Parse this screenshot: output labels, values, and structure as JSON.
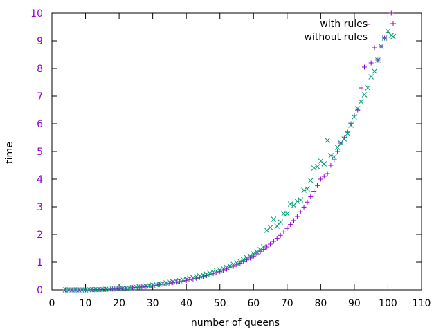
{
  "chart_data": {
    "type": "scatter",
    "title": "",
    "xlabel": "number of queens",
    "ylabel": "time",
    "xlim": [
      0,
      110
    ],
    "ylim": [
      0,
      10
    ],
    "xticks": [
      0,
      10,
      20,
      30,
      40,
      50,
      60,
      70,
      80,
      90,
      100,
      110
    ],
    "yticks": [
      0,
      1,
      2,
      3,
      4,
      5,
      6,
      7,
      8,
      9,
      10
    ],
    "ytick_color": "#9400d3",
    "grid": false,
    "legend_position": "top-right",
    "series": [
      {
        "name": "with rules",
        "marker": "plus",
        "color": "#9400d3",
        "x": [
          4,
          5,
          6,
          7,
          8,
          9,
          10,
          11,
          12,
          13,
          14,
          15,
          16,
          17,
          18,
          19,
          20,
          21,
          22,
          23,
          24,
          25,
          26,
          27,
          28,
          29,
          30,
          31,
          32,
          33,
          34,
          35,
          36,
          37,
          38,
          39,
          40,
          41,
          42,
          43,
          44,
          45,
          46,
          47,
          48,
          49,
          50,
          51,
          52,
          53,
          54,
          55,
          56,
          57,
          58,
          59,
          60,
          61,
          62,
          63,
          64,
          65,
          66,
          67,
          68,
          69,
          70,
          71,
          72,
          73,
          74,
          75,
          76,
          77,
          78,
          79,
          80,
          81,
          82,
          83,
          84,
          85,
          86,
          87,
          88,
          89,
          90,
          91,
          92,
          93,
          94,
          95,
          96,
          97,
          98,
          99,
          100,
          101
        ],
        "y": [
          0.0,
          0.0,
          0.0,
          0.0,
          0.0,
          0.0,
          0.0,
          0.0,
          0.01,
          0.01,
          0.01,
          0.02,
          0.02,
          0.02,
          0.03,
          0.03,
          0.04,
          0.05,
          0.06,
          0.07,
          0.08,
          0.09,
          0.1,
          0.11,
          0.12,
          0.14,
          0.15,
          0.17,
          0.19,
          0.2,
          0.22,
          0.24,
          0.26,
          0.28,
          0.3,
          0.32,
          0.34,
          0.37,
          0.39,
          0.42,
          0.45,
          0.48,
          0.51,
          0.55,
          0.58,
          0.62,
          0.66,
          0.7,
          0.75,
          0.8,
          0.85,
          0.9,
          0.96,
          1.02,
          1.08,
          1.15,
          1.22,
          1.3,
          1.38,
          1.46,
          1.55,
          1.65,
          1.75,
          1.86,
          1.97,
          2.09,
          2.22,
          2.36,
          2.5,
          2.65,
          2.82,
          2.99,
          3.17,
          3.36,
          3.56,
          3.77,
          4.0,
          4.1,
          4.2,
          4.5,
          4.7,
          5.0,
          5.3,
          5.5,
          5.7,
          6.0,
          6.3,
          6.5,
          7.3,
          8.05,
          9.6,
          8.2,
          8.75,
          8.3,
          8.8,
          9.1,
          9.3,
          10.0
        ]
      },
      {
        "name": "without rules",
        "marker": "cross",
        "color": "#009e73",
        "x": [
          4,
          5,
          6,
          7,
          8,
          9,
          10,
          11,
          12,
          13,
          14,
          15,
          16,
          17,
          18,
          19,
          20,
          21,
          22,
          23,
          24,
          25,
          26,
          27,
          28,
          29,
          30,
          31,
          32,
          33,
          34,
          35,
          36,
          37,
          38,
          39,
          40,
          41,
          42,
          43,
          44,
          45,
          46,
          47,
          48,
          49,
          50,
          51,
          52,
          53,
          54,
          55,
          56,
          57,
          58,
          59,
          60,
          61,
          62,
          63,
          64,
          65,
          66,
          67,
          68,
          69,
          70,
          71,
          72,
          73,
          74,
          75,
          76,
          77,
          78,
          79,
          80,
          81,
          82,
          83,
          84,
          85,
          86,
          87,
          88,
          89,
          90,
          91,
          92,
          93,
          94,
          95,
          96,
          97,
          98,
          99,
          100,
          101
        ],
        "y": [
          0.0,
          0.0,
          0.0,
          0.0,
          0.0,
          0.0,
          0.0,
          0.01,
          0.01,
          0.01,
          0.01,
          0.02,
          0.02,
          0.03,
          0.03,
          0.04,
          0.04,
          0.05,
          0.06,
          0.07,
          0.08,
          0.1,
          0.11,
          0.12,
          0.14,
          0.15,
          0.17,
          0.19,
          0.21,
          0.23,
          0.25,
          0.27,
          0.29,
          0.31,
          0.33,
          0.36,
          0.38,
          0.41,
          0.44,
          0.47,
          0.5,
          0.53,
          0.57,
          0.6,
          0.64,
          0.68,
          0.72,
          0.77,
          0.81,
          0.86,
          0.92,
          0.97,
          1.03,
          1.09,
          1.16,
          1.23,
          1.3,
          1.37,
          1.45,
          1.55,
          2.15,
          2.25,
          2.55,
          2.3,
          2.45,
          2.75,
          2.75,
          3.1,
          3.05,
          3.2,
          3.25,
          3.6,
          3.65,
          3.95,
          4.4,
          4.45,
          4.65,
          4.55,
          5.4,
          4.85,
          4.8,
          5.15,
          5.3,
          5.45,
          5.65,
          5.95,
          6.25,
          6.55,
          6.8,
          7.05,
          7.3,
          7.7,
          7.9,
          8.3,
          8.8,
          9.1,
          9.35,
          9.2
        ]
      }
    ]
  }
}
